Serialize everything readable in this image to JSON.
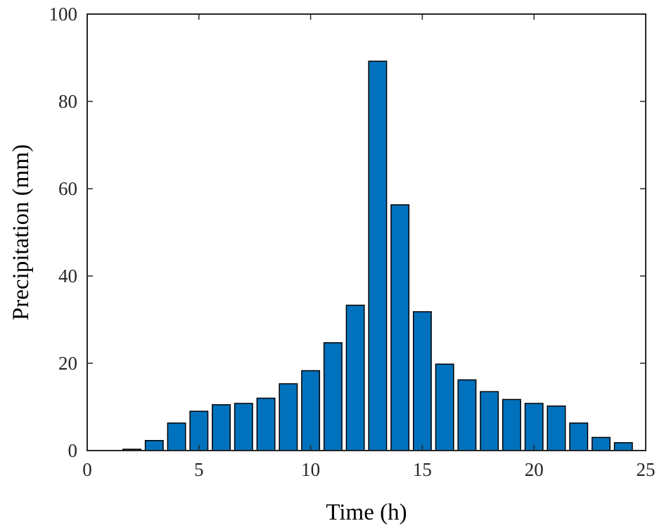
{
  "chart_data": {
    "type": "bar",
    "title": "",
    "xlabel": "Time (h)",
    "ylabel": "Precipitation  (mm)",
    "x": [
      1,
      2,
      3,
      4,
      5,
      6,
      7,
      8,
      9,
      10,
      11,
      12,
      13,
      14,
      15,
      16,
      17,
      18,
      19,
      20,
      21,
      22,
      23,
      24
    ],
    "values": [
      0,
      0.3,
      2.3,
      6.3,
      9.0,
      10.5,
      10.8,
      12.0,
      15.3,
      18.3,
      24.7,
      33.3,
      89.2,
      56.3,
      31.8,
      19.8,
      16.2,
      13.5,
      11.7,
      10.8,
      10.2,
      6.3,
      3.0,
      1.8
    ],
    "xlim": [
      0,
      25
    ],
    "ylim": [
      0,
      100
    ],
    "xticks": [
      0,
      5,
      10,
      15,
      20,
      25
    ],
    "yticks": [
      0,
      20,
      40,
      60,
      80,
      100
    ],
    "xtick_labels": [
      "0",
      "5",
      "10",
      "15",
      "20",
      "25"
    ],
    "ytick_labels": [
      "0",
      "20",
      "40",
      "60",
      "80",
      "100"
    ],
    "grid": false,
    "legend": "none",
    "bar_color": "#0072BD",
    "edge_color": "#000000"
  }
}
